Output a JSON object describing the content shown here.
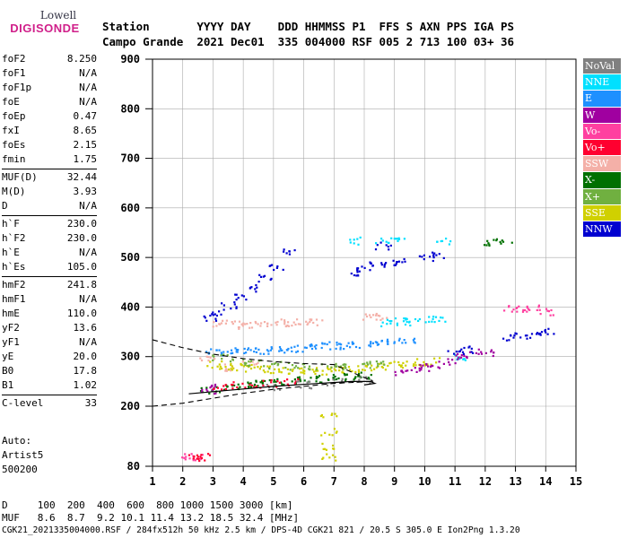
{
  "logo": {
    "top": "Lowell",
    "bottom": "DIGISONDE"
  },
  "header": {
    "line1": "Station       YYYY DAY    DDD HHMMSS P1  FFS S AXN PPS IGA PS",
    "line2": "Campo Grande  2021 Dec01  335 004000 RSF 005 2 713 100 03+ 36"
  },
  "params": {
    "g1": [
      [
        "foF2",
        "8.250"
      ],
      [
        "foF1",
        "N/A"
      ],
      [
        "foF1p",
        "N/A"
      ],
      [
        "foE",
        "N/A"
      ],
      [
        "foEp",
        "0.47"
      ],
      [
        "fxI",
        "8.65"
      ],
      [
        "foEs",
        "2.15"
      ],
      [
        "fmin",
        "1.75"
      ]
    ],
    "g2": [
      [
        "MUF(D)",
        "32.44"
      ],
      [
        "M(D)",
        "3.93"
      ],
      [
        "D",
        "N/A"
      ]
    ],
    "g3": [
      [
        "h`F",
        "230.0"
      ],
      [
        "h`F2",
        "230.0"
      ],
      [
        "h`E",
        "N/A"
      ],
      [
        "h`Es",
        "105.0"
      ]
    ],
    "g4": [
      [
        "hmF2",
        "241.8"
      ],
      [
        "hmF1",
        "N/A"
      ],
      [
        "hmE",
        "110.0"
      ],
      [
        "yF2",
        "13.6"
      ],
      [
        "yF1",
        "N/A"
      ],
      [
        "yE",
        "20.0"
      ],
      [
        "B0",
        "17.8"
      ],
      [
        "B1",
        "1.02"
      ]
    ],
    "g5": [
      [
        "C-level",
        "33"
      ]
    ]
  },
  "auto": [
    "Auto:",
    "Artist5",
    "500200"
  ],
  "legend": [
    {
      "label": "NoVal",
      "color": "#808080"
    },
    {
      "label": "NNE",
      "color": "#00e0ff"
    },
    {
      "label": "E",
      "color": "#1e90ff"
    },
    {
      "label": "W",
      "color": "#a000a0"
    },
    {
      "label": "Vo-",
      "color": "#ff40a0"
    },
    {
      "label": "Vo+",
      "color": "#ff0030"
    },
    {
      "label": "SSW",
      "color": "#f4b0a8"
    },
    {
      "label": "X-",
      "color": "#007000"
    },
    {
      "label": "X+",
      "color": "#70b040"
    },
    {
      "label": "SSE",
      "color": "#d0d000"
    },
    {
      "label": "NNW",
      "color": "#0000d0"
    }
  ],
  "axis": {
    "y_ticks": [
      "900",
      "800",
      "700",
      "600",
      "500",
      "400",
      "300",
      "200",
      "80"
    ],
    "x_ticks": [
      "1",
      "2",
      "3",
      "4",
      "5",
      "6",
      "7",
      "8",
      "9",
      "10",
      "11",
      "12",
      "13",
      "14",
      "15"
    ]
  },
  "bottom": {
    "line1": "D     100  200  400  600  800 1000 1500 3000 [km]",
    "line2": "MUF   8.6  8.7  9.2 10.1 11.4 13.2 18.5 32.4 [MHz]",
    "line3": "CGK21_2021335004000.RSF / 284fx512h 50 kHz 2.5 km / DPS-4D CGK21 821 / 20.5 S 305.0 E Ion2Png 1.3.20"
  },
  "chart_data": {
    "type": "scatter",
    "title": "",
    "xlabel": "",
    "ylabel": "",
    "xlim": [
      1,
      15
    ],
    "ylim": [
      80,
      900
    ],
    "x_ticks": [
      1,
      2,
      3,
      4,
      5,
      6,
      7,
      8,
      9,
      10,
      11,
      12,
      13,
      14,
      15
    ],
    "y_ticks": [
      80,
      200,
      300,
      400,
      500,
      600,
      700,
      800,
      900
    ],
    "grid": true,
    "legend_position": "right",
    "series": [
      {
        "name": "SSW",
        "color": "#f4b0a8",
        "x": [
          3.2,
          3.6,
          4.0,
          4.4,
          4.8,
          5.2,
          5.6,
          6.0,
          6.4,
          8.2,
          8.6,
          2.8,
          3.4,
          4.2
        ],
        "y": [
          368,
          368,
          365,
          366,
          368,
          370,
          370,
          372,
          370,
          380,
          382,
          300,
          280,
          290
        ]
      },
      {
        "name": "E",
        "color": "#1e90ff",
        "x": [
          3.0,
          3.4,
          3.8,
          4.2,
          4.6,
          5.0,
          5.4,
          5.8,
          6.2,
          6.6,
          7.0,
          7.4,
          7.8,
          8.2,
          8.6,
          9.0,
          9.4
        ],
        "y": [
          310,
          310,
          312,
          312,
          314,
          316,
          316,
          318,
          320,
          322,
          324,
          324,
          326,
          328,
          330,
          332,
          334
        ]
      },
      {
        "name": "NNE",
        "color": "#00e0ff",
        "x": [
          8.8,
          9.2,
          9.6,
          10.0,
          10.4,
          7.6,
          8.6,
          9.2,
          10.6,
          11.2
        ],
        "y": [
          370,
          372,
          372,
          375,
          378,
          535,
          535,
          535,
          535,
          300
        ]
      },
      {
        "name": "SSE",
        "color": "#d0d000",
        "x": [
          3.0,
          3.4,
          3.8,
          4.2,
          4.6,
          5.0,
          5.4,
          5.8,
          6.2,
          6.6,
          7.0,
          7.4,
          7.8,
          8.2,
          8.6,
          9.0,
          9.4,
          9.8,
          10.2,
          6.8,
          6.8,
          6.8,
          6.8
        ],
        "y": [
          285,
          282,
          280,
          278,
          276,
          275,
          274,
          273,
          272,
          272,
          274,
          276,
          278,
          280,
          282,
          285,
          288,
          290,
          292,
          180,
          150,
          120,
          100
        ]
      },
      {
        "name": "X-",
        "color": "#007000",
        "x": [
          2.8,
          3.2,
          3.6,
          4.0,
          4.4,
          4.8,
          5.2,
          5.6,
          6.0,
          6.4,
          6.8,
          7.2,
          7.6,
          8.0,
          12.2,
          12.6
        ],
        "y": [
          232,
          236,
          240,
          244,
          246,
          248,
          250,
          252,
          254,
          256,
          258,
          260,
          262,
          264,
          532,
          532
        ]
      },
      {
        "name": "X+",
        "color": "#70b040",
        "x": [
          3.2,
          3.8,
          4.4,
          5.0,
          5.6,
          6.2,
          6.8,
          7.4,
          8.0,
          8.6
        ],
        "y": [
          300,
          292,
          288,
          284,
          282,
          280,
          280,
          282,
          286,
          290
        ]
      },
      {
        "name": "W",
        "color": "#a000a0",
        "x": [
          2.8,
          3.0,
          9.2,
          9.6,
          10.0,
          10.4,
          10.8,
          11.2,
          11.6,
          12.0
        ],
        "y": [
          230,
          240,
          270,
          275,
          280,
          285,
          290,
          300,
          305,
          310
        ]
      },
      {
        "name": "Vo-",
        "color": "#ff40a0",
        "x": [
          12.8,
          13.2,
          13.6,
          14.0,
          2.2,
          2.4
        ],
        "y": [
          398,
          396,
          400,
          392,
          100,
          98
        ]
      },
      {
        "name": "Vo+",
        "color": "#ff0030",
        "x": [
          2.4,
          2.6,
          3.2,
          3.8,
          4.4,
          5.0,
          5.6
        ],
        "y": [
          98,
          100,
          242,
          244,
          246,
          248,
          250
        ]
      },
      {
        "name": "NNW",
        "color": "#0000d0",
        "x": [
          2.9,
          3.1,
          3.5,
          3.9,
          4.3,
          4.7,
          5.1,
          5.5,
          7.6,
          8.0,
          8.4,
          8.8,
          9.2,
          10.0,
          10.4,
          11.0,
          11.4,
          12.8,
          13.2,
          13.6,
          14.0,
          8.6
        ],
        "y": [
          380,
          390,
          405,
          420,
          440,
          460,
          480,
          515,
          470,
          480,
          485,
          490,
          492,
          500,
          505,
          310,
          315,
          340,
          345,
          348,
          352,
          525
        ]
      },
      {
        "name": "NoVal",
        "color": "#808080",
        "x": [
          5.0,
          6.0,
          7.0,
          8.0
        ],
        "y": [
          240,
          245,
          250,
          255
        ]
      }
    ]
  }
}
